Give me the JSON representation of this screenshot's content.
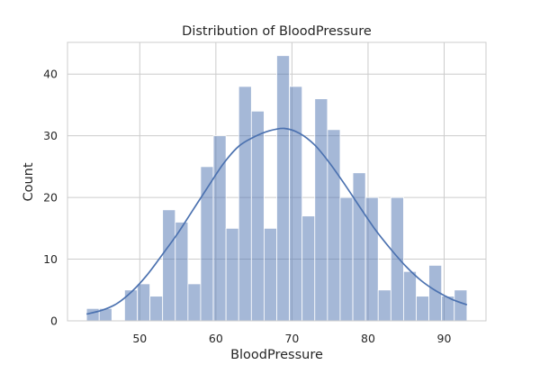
{
  "chart_data": {
    "type": "bar",
    "title": "Distribution of BloodPressure",
    "xlabel": "BloodPressure",
    "ylabel": "Count",
    "xlim": [
      40.5,
      95.5
    ],
    "ylim": [
      0,
      45.15
    ],
    "xticks": [
      50,
      60,
      70,
      80,
      90
    ],
    "yticks": [
      0,
      10,
      20,
      30,
      40
    ],
    "grid": true,
    "bin_width": 1.667,
    "bins": [
      {
        "x0": 43.0,
        "count": 2
      },
      {
        "x0": 44.667,
        "count": 2
      },
      {
        "x0": 46.333,
        "count": 0
      },
      {
        "x0": 48.0,
        "count": 5
      },
      {
        "x0": 49.667,
        "count": 6
      },
      {
        "x0": 51.333,
        "count": 4
      },
      {
        "x0": 53.0,
        "count": 18
      },
      {
        "x0": 54.667,
        "count": 16
      },
      {
        "x0": 56.333,
        "count": 6
      },
      {
        "x0": 58.0,
        "count": 25
      },
      {
        "x0": 59.667,
        "count": 30
      },
      {
        "x0": 61.333,
        "count": 15
      },
      {
        "x0": 63.0,
        "count": 38
      },
      {
        "x0": 64.667,
        "count": 34
      },
      {
        "x0": 66.333,
        "count": 15
      },
      {
        "x0": 68.0,
        "count": 43
      },
      {
        "x0": 69.667,
        "count": 38
      },
      {
        "x0": 71.333,
        "count": 17
      },
      {
        "x0": 73.0,
        "count": 36
      },
      {
        "x0": 74.667,
        "count": 31
      },
      {
        "x0": 76.333,
        "count": 20
      },
      {
        "x0": 78.0,
        "count": 24
      },
      {
        "x0": 79.667,
        "count": 20
      },
      {
        "x0": 81.333,
        "count": 5
      },
      {
        "x0": 83.0,
        "count": 20
      },
      {
        "x0": 84.667,
        "count": 8
      },
      {
        "x0": 86.333,
        "count": 4
      },
      {
        "x0": 88.0,
        "count": 9
      },
      {
        "x0": 89.667,
        "count": 4
      },
      {
        "x0": 91.333,
        "count": 5
      }
    ],
    "kde": {
      "x": [
        43,
        45,
        47,
        49,
        51,
        53,
        55,
        57,
        59,
        61,
        63,
        65,
        67,
        69,
        71,
        73,
        75,
        77,
        79,
        81,
        83,
        85,
        87,
        89,
        91,
        93
      ],
      "y": [
        1.1,
        1.7,
        2.8,
        4.8,
        7.5,
        10.8,
        14.2,
        18.0,
        21.8,
        25.5,
        28.3,
        29.8,
        30.8,
        31.2,
        30.4,
        28.5,
        25.5,
        22.0,
        18.3,
        14.7,
        11.6,
        8.8,
        6.5,
        4.8,
        3.5,
        2.6
      ]
    },
    "colors": {
      "bar_fill": "#4c72b0",
      "bar_opacity": 0.5,
      "kde_line": "#4c72b0",
      "grid": "#cccccc",
      "axes_edge": "#cccccc"
    }
  }
}
